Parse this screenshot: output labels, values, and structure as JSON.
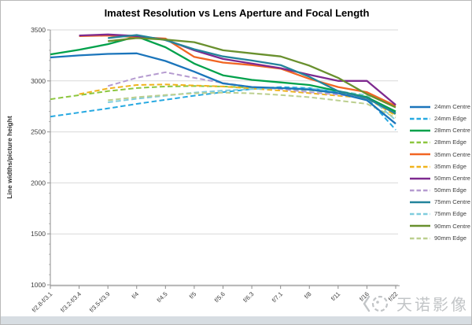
{
  "watermark": {
    "text": "天诺影像",
    "logo": "camera-face-logo"
  },
  "chart_data": {
    "type": "line",
    "title": "Imatest Resolution vs Lens Aperture and Focal Length",
    "xlabel": "",
    "ylabel": "Line widths/picture height",
    "ylim": [
      1000,
      3500
    ],
    "yticks": [
      1000,
      1500,
      2000,
      2500,
      3000,
      3500
    ],
    "grid": true,
    "legend_position": "right",
    "categories": [
      "f/2.8-f/3.1",
      "f/3.2-f/3.4",
      "f/3.5-f/3.9",
      "f/4",
      "f/4.5",
      "f/5",
      "f/5.6",
      "f/6.3",
      "f/7.1",
      "f/8",
      "f/11",
      "f/16",
      "f/22"
    ],
    "series": [
      {
        "name": "24mm Centre",
        "style": "solid",
        "color": "#1b75bb",
        "values": [
          3230,
          3250,
          3265,
          3270,
          3195,
          3090,
          2975,
          2940,
          2930,
          2915,
          2880,
          2810,
          2580
        ]
      },
      {
        "name": "24mm Edge",
        "style": "dashed",
        "color": "#27a9e1",
        "values": [
          2650,
          2690,
          2730,
          2775,
          2815,
          2855,
          2890,
          2920,
          2940,
          2930,
          2890,
          2835,
          2520
        ]
      },
      {
        "name": "28mm Centre",
        "style": "solid",
        "color": "#00a14b",
        "values": [
          3260,
          3305,
          3360,
          3435,
          3330,
          3170,
          3055,
          3010,
          2985,
          2960,
          2900,
          2840,
          2700
        ]
      },
      {
        "name": "28mm Edge",
        "style": "dashed",
        "color": "#8cc63e",
        "values": [
          2820,
          2860,
          2900,
          2930,
          2945,
          2950,
          2945,
          2935,
          2925,
          2910,
          2880,
          2845,
          2670
        ]
      },
      {
        "name": "35mm Centre",
        "style": "solid",
        "color": "#f16522",
        "values": [
          null,
          3440,
          3445,
          3430,
          3415,
          3235,
          3180,
          3155,
          3120,
          3020,
          2940,
          2890,
          2755
        ]
      },
      {
        "name": "35mm Edge",
        "style": "dashed",
        "color": "#f0b31c",
        "values": [
          null,
          2870,
          2925,
          2960,
          2965,
          2955,
          2945,
          2925,
          2905,
          2880,
          2855,
          2830,
          2660
        ]
      },
      {
        "name": "50mm Centre",
        "style": "solid",
        "color": "#7e2a8f",
        "values": [
          null,
          3445,
          3455,
          3440,
          3405,
          3300,
          3215,
          3170,
          3125,
          3060,
          3000,
          3000,
          2765
        ]
      },
      {
        "name": "50mm Edge",
        "style": "dashed",
        "color": "#b59bd0",
        "values": [
          null,
          null,
          2950,
          3030,
          3085,
          3030,
          2980,
          2940,
          2920,
          2890,
          2865,
          2835,
          2690
        ]
      },
      {
        "name": "75mm Centre",
        "style": "solid",
        "color": "#23849b",
        "values": [
          null,
          null,
          3420,
          3450,
          3400,
          3310,
          3240,
          3200,
          3155,
          3040,
          2900,
          2830,
          2680
        ]
      },
      {
        "name": "75mm Edge",
        "style": "dashed",
        "color": "#7fccdd",
        "values": [
          null,
          null,
          2790,
          2825,
          2855,
          2885,
          2905,
          2920,
          2930,
          2925,
          2900,
          2860,
          2615
        ]
      },
      {
        "name": "90mm Centre",
        "style": "solid",
        "color": "#69902e",
        "values": [
          null,
          null,
          3390,
          3420,
          3405,
          3380,
          3300,
          3270,
          3240,
          3150,
          3030,
          2870,
          2740
        ]
      },
      {
        "name": "90mm Edge",
        "style": "dashed",
        "color": "#bccf8f",
        "values": [
          null,
          null,
          2810,
          2840,
          2862,
          2878,
          2885,
          2878,
          2862,
          2840,
          2808,
          2775,
          2640
        ]
      }
    ]
  }
}
